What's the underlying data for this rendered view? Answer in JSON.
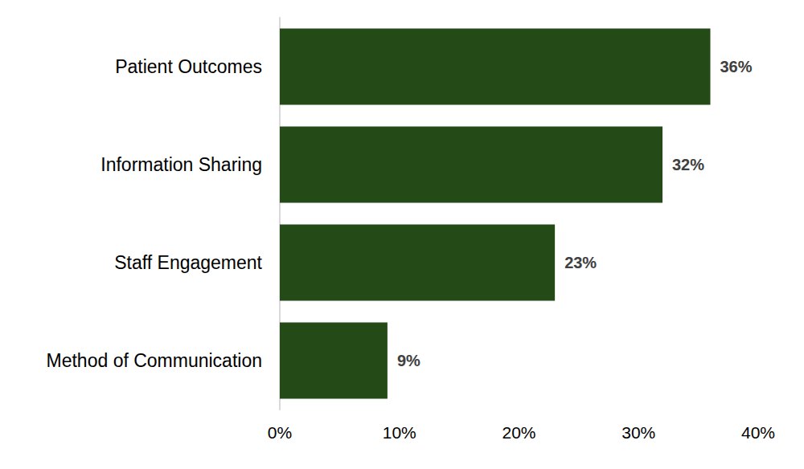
{
  "chart_data": {
    "type": "bar",
    "orientation": "horizontal",
    "categories": [
      "Patient Outcomes",
      "Information Sharing",
      "Staff Engagement",
      "Method of Communication"
    ],
    "values": [
      36,
      32,
      23,
      9
    ],
    "value_labels": [
      "36%",
      "32%",
      "23%",
      "9%"
    ],
    "color": "#244a18",
    "xlim": [
      0,
      40
    ],
    "xticks": [
      {
        "value": 0,
        "label": "0%"
      },
      {
        "value": 10,
        "label": "10%"
      },
      {
        "value": 20,
        "label": "20%"
      },
      {
        "value": 30,
        "label": "30%"
      },
      {
        "value": 40,
        "label": "40%"
      }
    ],
    "grid": false,
    "data_labels": true
  }
}
